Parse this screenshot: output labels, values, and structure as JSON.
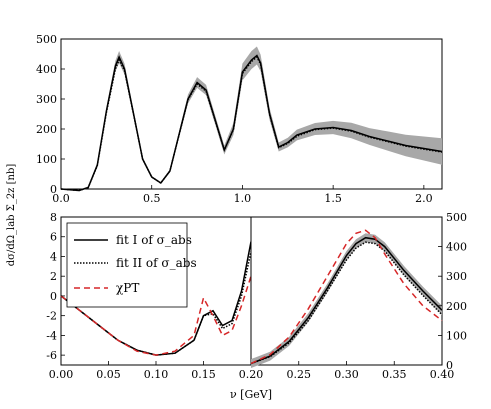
{
  "figure": {
    "ylabel_main": "dσ/dΩ_lab Σ_2z [nb]",
    "xlabel": "ν [GeV]"
  },
  "chart_data": [
    {
      "type": "line",
      "panel": "top",
      "xlim": [
        0.0,
        2.1
      ],
      "ylim": [
        0,
        500
      ],
      "x_ticks": [
        "0.0",
        "0.5",
        "1.0",
        "1.5",
        "2.0"
      ],
      "y_ticks": [
        "0",
        "100",
        "200",
        "300",
        "400",
        "500"
      ],
      "series": [
        {
          "name": "fit I of σ_abs",
          "x": [
            0.0,
            0.1,
            0.15,
            0.2,
            0.25,
            0.3,
            0.32,
            0.35,
            0.4,
            0.45,
            0.5,
            0.55,
            0.6,
            0.65,
            0.7,
            0.75,
            0.8,
            0.85,
            0.9,
            0.95,
            1.0,
            1.05,
            1.08,
            1.1,
            1.15,
            1.2,
            1.25,
            1.3,
            1.4,
            1.5,
            1.6,
            1.7,
            1.8,
            1.9,
            2.0,
            2.1
          ],
          "y": [
            0,
            -5,
            5,
            80,
            260,
            410,
            440,
            400,
            250,
            100,
            40,
            20,
            60,
            180,
            300,
            355,
            330,
            230,
            130,
            200,
            390,
            430,
            445,
            420,
            250,
            140,
            155,
            180,
            200,
            205,
            195,
            175,
            160,
            145,
            135,
            125
          ]
        },
        {
          "name": "fit II of σ_abs",
          "x": [
            0.0,
            0.1,
            0.15,
            0.2,
            0.25,
            0.3,
            0.32,
            0.35,
            0.4,
            0.45,
            0.5,
            0.55,
            0.6,
            0.65,
            0.7,
            0.75,
            0.8,
            0.85,
            0.9,
            0.95,
            1.0,
            1.05,
            1.08,
            1.1,
            1.15,
            1.2,
            1.25,
            1.3,
            1.4,
            1.5,
            1.6,
            1.7,
            1.8,
            1.9,
            2.0,
            2.1
          ],
          "y": [
            0,
            -5,
            5,
            78,
            255,
            400,
            430,
            395,
            248,
            100,
            40,
            20,
            60,
            178,
            298,
            350,
            326,
            228,
            130,
            198,
            385,
            425,
            440,
            416,
            248,
            138,
            152,
            176,
            198,
            203,
            193,
            173,
            158,
            143,
            133,
            123
          ]
        }
      ],
      "band": {
        "x": [
          0.0,
          0.1,
          0.15,
          0.2,
          0.25,
          0.3,
          0.32,
          0.35,
          0.4,
          0.45,
          0.5,
          0.55,
          0.6,
          0.65,
          0.7,
          0.75,
          0.8,
          0.85,
          0.9,
          0.95,
          1.0,
          1.05,
          1.08,
          1.1,
          1.15,
          1.2,
          1.25,
          1.3,
          1.4,
          1.5,
          1.6,
          1.7,
          1.8,
          1.9,
          2.0,
          2.1
        ],
        "half_width": [
          2,
          2,
          3,
          8,
          12,
          18,
          20,
          18,
          12,
          6,
          3,
          2,
          5,
          10,
          15,
          18,
          17,
          15,
          15,
          20,
          28,
          30,
          30,
          28,
          20,
          15,
          16,
          18,
          20,
          22,
          26,
          28,
          32,
          36,
          40,
          44
        ]
      }
    },
    {
      "type": "line",
      "panel": "bottom-left",
      "xlim": [
        0.0,
        0.2
      ],
      "ylim": [
        -7,
        8
      ],
      "x_ticks": [
        "0.00",
        "0.05",
        "0.10",
        "0.15",
        "0.20"
      ],
      "y_ticks": [
        "-6",
        "-4",
        "-2",
        "0",
        "2",
        "4",
        "6",
        "8"
      ],
      "legend": {
        "position": "upper-left",
        "entries": [
          {
            "label": "fit I of σ_abs",
            "style": "solid"
          },
          {
            "label": "fit II of σ_abs",
            "style": "dotted"
          },
          {
            "label": "χPT",
            "style": "dashed-red"
          }
        ]
      },
      "series": [
        {
          "name": "fit I of σ_abs",
          "x": [
            0.0,
            0.02,
            0.04,
            0.06,
            0.08,
            0.1,
            0.12,
            0.14,
            0.15,
            0.16,
            0.17,
            0.18,
            0.19,
            0.2
          ],
          "y": [
            0,
            -1.5,
            -3,
            -4.5,
            -5.5,
            -6.0,
            -5.8,
            -4.5,
            -2.0,
            -1.5,
            -3.0,
            -2.5,
            0.5,
            5.5
          ]
        },
        {
          "name": "fit II of σ_abs",
          "x": [
            0.0,
            0.02,
            0.04,
            0.06,
            0.08,
            0.1,
            0.12,
            0.14,
            0.15,
            0.16,
            0.17,
            0.18,
            0.19,
            0.2
          ],
          "y": [
            0,
            -1.5,
            -3,
            -4.5,
            -5.5,
            -6.0,
            -5.8,
            -4.5,
            -2.0,
            -1.8,
            -3.3,
            -2.8,
            0.0,
            4.5
          ]
        },
        {
          "name": "χPT",
          "x": [
            0.0,
            0.02,
            0.04,
            0.06,
            0.08,
            0.1,
            0.12,
            0.14,
            0.15,
            0.16,
            0.17,
            0.18,
            0.19,
            0.2
          ],
          "y": [
            0,
            -1.5,
            -3,
            -4.5,
            -5.6,
            -6.0,
            -5.6,
            -4.0,
            -0.2,
            -2.0,
            -4.0,
            -3.5,
            -1.0,
            2.0
          ]
        }
      ]
    },
    {
      "type": "line",
      "panel": "bottom-right",
      "xlim": [
        0.2,
        0.4
      ],
      "ylim": [
        0,
        500
      ],
      "x_ticks": [
        "0.25",
        "0.30",
        "0.35",
        "0.40"
      ],
      "y_ticks": [
        "0",
        "100",
        "200",
        "300",
        "400",
        "500"
      ],
      "series": [
        {
          "name": "fit I of σ_abs",
          "x": [
            0.2,
            0.22,
            0.24,
            0.26,
            0.28,
            0.3,
            0.31,
            0.32,
            0.33,
            0.34,
            0.36,
            0.38,
            0.4
          ],
          "y": [
            5,
            30,
            80,
            160,
            260,
            370,
            410,
            430,
            425,
            400,
            320,
            250,
            185
          ]
        },
        {
          "name": "fit II of σ_abs",
          "x": [
            0.2,
            0.22,
            0.24,
            0.26,
            0.28,
            0.3,
            0.31,
            0.32,
            0.33,
            0.34,
            0.36,
            0.38,
            0.4
          ],
          "y": [
            5,
            28,
            75,
            150,
            250,
            355,
            395,
            415,
            410,
            385,
            305,
            235,
            170
          ]
        },
        {
          "name": "χPT",
          "x": [
            0.2,
            0.22,
            0.24,
            0.26,
            0.28,
            0.3,
            0.31,
            0.32,
            0.33,
            0.34,
            0.36,
            0.38,
            0.4
          ],
          "y": [
            5,
            35,
            95,
            190,
            300,
            410,
            445,
            455,
            430,
            375,
            275,
            200,
            150
          ]
        }
      ]
    }
  ]
}
